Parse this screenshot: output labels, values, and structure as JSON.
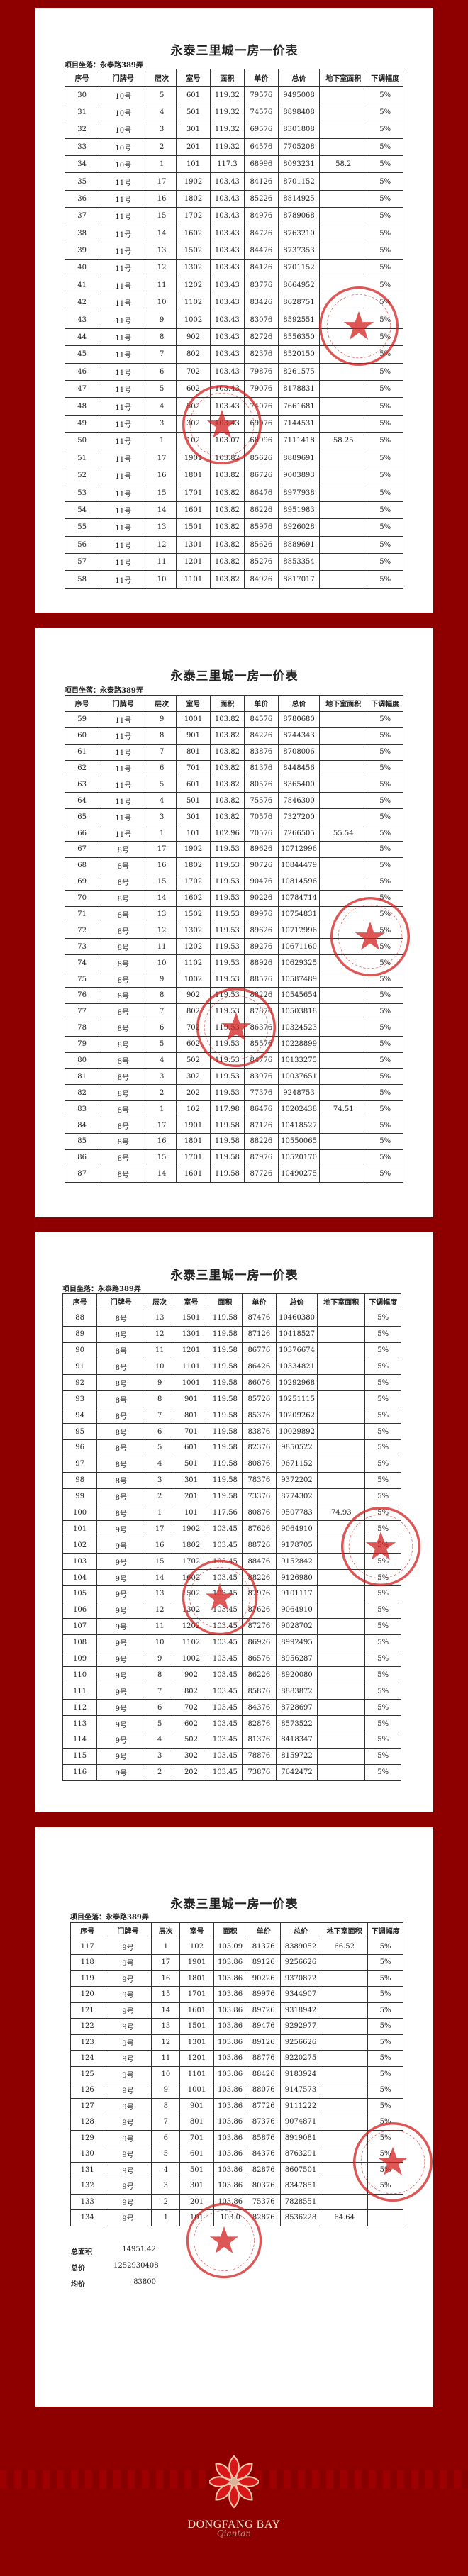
{
  "title": "永泰三里城一房一价表",
  "location": "项目坐落：永泰路389弄",
  "headers": [
    "序号",
    "门牌号",
    "层次",
    "室号",
    "面积",
    "单价",
    "总价",
    "地下室面积",
    "下调幅度"
  ],
  "pages": [
    {
      "rows": [
        [
          "30",
          "10号",
          "5",
          "601",
          "119.32",
          "79576",
          "9495008",
          "",
          "5%"
        ],
        [
          "31",
          "10号",
          "4",
          "501",
          "119.32",
          "74576",
          "8898408",
          "",
          "5%"
        ],
        [
          "32",
          "10号",
          "3",
          "301",
          "119.32",
          "69576",
          "8301808",
          "",
          "5%"
        ],
        [
          "33",
          "10号",
          "2",
          "201",
          "119.32",
          "64576",
          "7705208",
          "",
          "5%"
        ],
        [
          "34",
          "10号",
          "1",
          "101",
          "117.3",
          "68996",
          "8093231",
          "58.2",
          "5%"
        ],
        [
          "35",
          "11号",
          "17",
          "1902",
          "103.43",
          "84126",
          "8701152",
          "",
          "5%"
        ],
        [
          "36",
          "11号",
          "16",
          "1802",
          "103.43",
          "85226",
          "8814925",
          "",
          "5%"
        ],
        [
          "37",
          "11号",
          "15",
          "1702",
          "103.43",
          "84976",
          "8789068",
          "",
          "5%"
        ],
        [
          "38",
          "11号",
          "14",
          "1602",
          "103.43",
          "84726",
          "8763210",
          "",
          "5%"
        ],
        [
          "39",
          "11号",
          "13",
          "1502",
          "103.43",
          "84476",
          "8737353",
          "",
          "5%"
        ],
        [
          "40",
          "11号",
          "12",
          "1302",
          "103.43",
          "84126",
          "8701152",
          "",
          "5%"
        ],
        [
          "41",
          "11号",
          "11",
          "1202",
          "103.43",
          "83776",
          "8664952",
          "",
          "5%"
        ],
        [
          "42",
          "11号",
          "10",
          "1102",
          "103.43",
          "83426",
          "8628751",
          "",
          "5%"
        ],
        [
          "43",
          "11号",
          "9",
          "1002",
          "103.43",
          "83076",
          "8592551",
          "",
          "5%"
        ],
        [
          "44",
          "11号",
          "8",
          "902",
          "103.43",
          "82726",
          "8556350",
          "",
          "5%"
        ],
        [
          "45",
          "11号",
          "7",
          "802",
          "103.43",
          "82376",
          "8520150",
          "",
          "5%"
        ],
        [
          "46",
          "11号",
          "6",
          "702",
          "103.43",
          "79876",
          "8261575",
          "",
          "5%"
        ],
        [
          "47",
          "11号",
          "5",
          "602",
          "103.43",
          "79076",
          "8178831",
          "",
          "5%"
        ],
        [
          "48",
          "11号",
          "4",
          "502",
          "103.43",
          "74076",
          "7661681",
          "",
          "5%"
        ],
        [
          "49",
          "11号",
          "3",
          "302",
          "103.43",
          "69076",
          "7144531",
          "",
          "5%"
        ],
        [
          "50",
          "11号",
          "1",
          "102",
          "103.07",
          "68996",
          "7111418",
          "58.25",
          "5%"
        ],
        [
          "51",
          "11号",
          "17",
          "1901",
          "103.82",
          "85626",
          "8889691",
          "",
          "5%"
        ],
        [
          "52",
          "11号",
          "16",
          "1801",
          "103.82",
          "86726",
          "9003893",
          "",
          "5%"
        ],
        [
          "53",
          "11号",
          "15",
          "1701",
          "103.82",
          "86476",
          "8977938",
          "",
          "5%"
        ],
        [
          "54",
          "11号",
          "14",
          "1601",
          "103.82",
          "86226",
          "8951983",
          "",
          "5%"
        ],
        [
          "55",
          "11号",
          "13",
          "1501",
          "103.82",
          "85976",
          "8926028",
          "",
          "5%"
        ],
        [
          "56",
          "11号",
          "12",
          "1301",
          "103.82",
          "85626",
          "8889691",
          "",
          "5%"
        ],
        [
          "57",
          "11号",
          "11",
          "1201",
          "103.82",
          "85276",
          "8853354",
          "",
          "5%"
        ],
        [
          "58",
          "11号",
          "10",
          "1101",
          "103.82",
          "84926",
          "8817017",
          "",
          "5%"
        ]
      ]
    },
    {
      "rows": [
        [
          "59",
          "11号",
          "9",
          "1001",
          "103.82",
          "84576",
          "8780680",
          "",
          "5%"
        ],
        [
          "60",
          "11号",
          "8",
          "901",
          "103.82",
          "84226",
          "8744343",
          "",
          "5%"
        ],
        [
          "61",
          "11号",
          "7",
          "801",
          "103.82",
          "83876",
          "8708006",
          "",
          "5%"
        ],
        [
          "62",
          "11号",
          "6",
          "701",
          "103.82",
          "81376",
          "8448456",
          "",
          "5%"
        ],
        [
          "63",
          "11号",
          "5",
          "601",
          "103.82",
          "80576",
          "8365400",
          "",
          "5%"
        ],
        [
          "64",
          "11号",
          "4",
          "501",
          "103.82",
          "75576",
          "7846300",
          "",
          "5%"
        ],
        [
          "65",
          "11号",
          "3",
          "301",
          "103.82",
          "70576",
          "7327200",
          "",
          "5%"
        ],
        [
          "66",
          "11号",
          "1",
          "101",
          "102.96",
          "70576",
          "7266505",
          "55.54",
          "5%"
        ],
        [
          "67",
          "8号",
          "17",
          "1902",
          "119.53",
          "89626",
          "10712996",
          "",
          "5%"
        ],
        [
          "68",
          "8号",
          "16",
          "1802",
          "119.53",
          "90726",
          "10844479",
          "",
          "5%"
        ],
        [
          "69",
          "8号",
          "15",
          "1702",
          "119.53",
          "90476",
          "10814596",
          "",
          "5%"
        ],
        [
          "70",
          "8号",
          "14",
          "1602",
          "119.53",
          "90226",
          "10784714",
          "",
          "5%"
        ],
        [
          "71",
          "8号",
          "13",
          "1502",
          "119.53",
          "89976",
          "10754831",
          "",
          "5%"
        ],
        [
          "72",
          "8号",
          "12",
          "1302",
          "119.53",
          "89626",
          "10712996",
          "",
          "5%"
        ],
        [
          "73",
          "8号",
          "11",
          "1202",
          "119.53",
          "89276",
          "10671160",
          "",
          "5%"
        ],
        [
          "74",
          "8号",
          "10",
          "1102",
          "119.53",
          "88926",
          "10629325",
          "",
          "5%"
        ],
        [
          "75",
          "8号",
          "9",
          "1002",
          "119.53",
          "88576",
          "10587489",
          "",
          "5%"
        ],
        [
          "76",
          "8号",
          "8",
          "902",
          "119.53",
          "88226",
          "10545654",
          "",
          "5%"
        ],
        [
          "77",
          "8号",
          "7",
          "802",
          "119.53",
          "87876",
          "10503818",
          "",
          "5%"
        ],
        [
          "78",
          "8号",
          "6",
          "702",
          "119.53",
          "86376",
          "10324523",
          "",
          "5%"
        ],
        [
          "79",
          "8号",
          "5",
          "602",
          "119.53",
          "85576",
          "10228899",
          "",
          "5%"
        ],
        [
          "80",
          "8号",
          "4",
          "502",
          "119.53",
          "84776",
          "10133275",
          "",
          "5%"
        ],
        [
          "81",
          "8号",
          "3",
          "302",
          "119.53",
          "83976",
          "10037651",
          "",
          "5%"
        ],
        [
          "82",
          "8号",
          "2",
          "202",
          "119.53",
          "77376",
          "9248753",
          "",
          "5%"
        ],
        [
          "83",
          "8号",
          "1",
          "102",
          "117.98",
          "86476",
          "10202438",
          "74.51",
          "5%"
        ],
        [
          "84",
          "8号",
          "17",
          "1901",
          "119.58",
          "87126",
          "10418527",
          "",
          "5%"
        ],
        [
          "85",
          "8号",
          "16",
          "1801",
          "119.58",
          "88226",
          "10550065",
          "",
          "5%"
        ],
        [
          "86",
          "8号",
          "15",
          "1701",
          "119.58",
          "87976",
          "10520170",
          "",
          "5%"
        ],
        [
          "87",
          "8号",
          "14",
          "1601",
          "119.58",
          "87726",
          "10490275",
          "",
          "5%"
        ]
      ]
    },
    {
      "rows": [
        [
          "88",
          "8号",
          "13",
          "1501",
          "119.58",
          "87476",
          "10460380",
          "",
          "5%"
        ],
        [
          "89",
          "8号",
          "12",
          "1301",
          "119.58",
          "87126",
          "10418527",
          "",
          "5%"
        ],
        [
          "90",
          "8号",
          "11",
          "1201",
          "119.58",
          "86776",
          "10376674",
          "",
          "5%"
        ],
        [
          "91",
          "8号",
          "10",
          "1101",
          "119.58",
          "86426",
          "10334821",
          "",
          "5%"
        ],
        [
          "92",
          "8号",
          "9",
          "1001",
          "119.58",
          "86076",
          "10292968",
          "",
          "5%"
        ],
        [
          "93",
          "8号",
          "8",
          "901",
          "119.58",
          "85726",
          "10251115",
          "",
          "5%"
        ],
        [
          "94",
          "8号",
          "7",
          "801",
          "119.58",
          "85376",
          "10209262",
          "",
          "5%"
        ],
        [
          "95",
          "8号",
          "6",
          "701",
          "119.58",
          "83876",
          "10029892",
          "",
          "5%"
        ],
        [
          "96",
          "8号",
          "5",
          "601",
          "119.58",
          "82376",
          "9850522",
          "",
          "5%"
        ],
        [
          "97",
          "8号",
          "4",
          "501",
          "119.58",
          "80876",
          "9671152",
          "",
          "5%"
        ],
        [
          "98",
          "8号",
          "3",
          "301",
          "119.58",
          "78376",
          "9372202",
          "",
          "5%"
        ],
        [
          "99",
          "8号",
          "2",
          "201",
          "119.58",
          "73376",
          "8774302",
          "",
          "5%"
        ],
        [
          "100",
          "8号",
          "1",
          "101",
          "117.56",
          "80876",
          "9507783",
          "74.93",
          "5%"
        ],
        [
          "101",
          "9号",
          "17",
          "1902",
          "103.45",
          "87626",
          "9064910",
          "",
          "5%"
        ],
        [
          "102",
          "9号",
          "16",
          "1802",
          "103.45",
          "88726",
          "9178705",
          "",
          "5%"
        ],
        [
          "103",
          "9号",
          "15",
          "1702",
          "103.45",
          "88476",
          "9152842",
          "",
          "5%"
        ],
        [
          "104",
          "9号",
          "14",
          "1602",
          "103.45",
          "88226",
          "9126980",
          "",
          "5%"
        ],
        [
          "105",
          "9号",
          "13",
          "1502",
          "103.45",
          "87976",
          "9101117",
          "",
          "5%"
        ],
        [
          "106",
          "9号",
          "12",
          "1302",
          "103.45",
          "87626",
          "9064910",
          "",
          "5%"
        ],
        [
          "107",
          "9号",
          "11",
          "1202",
          "103.45",
          "87276",
          "9028702",
          "",
          "5%"
        ],
        [
          "108",
          "9号",
          "10",
          "1102",
          "103.45",
          "86926",
          "8992495",
          "",
          "5%"
        ],
        [
          "109",
          "9号",
          "9",
          "1002",
          "103.45",
          "86576",
          "8956287",
          "",
          "5%"
        ],
        [
          "110",
          "9号",
          "8",
          "902",
          "103.45",
          "86226",
          "8920080",
          "",
          "5%"
        ],
        [
          "111",
          "9号",
          "7",
          "802",
          "103.45",
          "85876",
          "8883872",
          "",
          "5%"
        ],
        [
          "112",
          "9号",
          "6",
          "702",
          "103.45",
          "84376",
          "8728697",
          "",
          "5%"
        ],
        [
          "113",
          "9号",
          "5",
          "602",
          "103.45",
          "82876",
          "8573522",
          "",
          "5%"
        ],
        [
          "114",
          "9号",
          "4",
          "502",
          "103.45",
          "81376",
          "8418347",
          "",
          "5%"
        ],
        [
          "115",
          "9号",
          "3",
          "302",
          "103.45",
          "78876",
          "8159722",
          "",
          "5%"
        ],
        [
          "116",
          "9号",
          "2",
          "202",
          "103.45",
          "73876",
          "7642472",
          "",
          "5%"
        ]
      ]
    },
    {
      "rows": [
        [
          "117",
          "9号",
          "1",
          "102",
          "103.09",
          "81376",
          "8389052",
          "66.52",
          "5%"
        ],
        [
          "118",
          "9号",
          "17",
          "1901",
          "103.86",
          "89126",
          "9256626",
          "",
          "5%"
        ],
        [
          "119",
          "9号",
          "16",
          "1801",
          "103.86",
          "90226",
          "9370872",
          "",
          "5%"
        ],
        [
          "120",
          "9号",
          "15",
          "1701",
          "103.86",
          "89976",
          "9344907",
          "",
          "5%"
        ],
        [
          "121",
          "9号",
          "14",
          "1601",
          "103.86",
          "89726",
          "9318942",
          "",
          "5%"
        ],
        [
          "122",
          "9号",
          "13",
          "1501",
          "103.86",
          "89476",
          "9292977",
          "",
          "5%"
        ],
        [
          "123",
          "9号",
          "12",
          "1301",
          "103.86",
          "89126",
          "9256626",
          "",
          "5%"
        ],
        [
          "124",
          "9号",
          "11",
          "1201",
          "103.86",
          "88776",
          "9220275",
          "",
          "5%"
        ],
        [
          "125",
          "9号",
          "10",
          "1101",
          "103.86",
          "88426",
          "9183924",
          "",
          "5%"
        ],
        [
          "126",
          "9号",
          "9",
          "1001",
          "103.86",
          "88076",
          "9147573",
          "",
          "5%"
        ],
        [
          "127",
          "9号",
          "8",
          "901",
          "103.86",
          "87726",
          "9111222",
          "",
          "5%"
        ],
        [
          "128",
          "9号",
          "7",
          "801",
          "103.86",
          "87376",
          "9074871",
          "",
          "5%"
        ],
        [
          "129",
          "9号",
          "6",
          "701",
          "103.86",
          "85876",
          "8919081",
          "",
          "5%"
        ],
        [
          "130",
          "9号",
          "5",
          "601",
          "103.86",
          "84376",
          "8763291",
          "",
          "5%"
        ],
        [
          "131",
          "9号",
          "4",
          "501",
          "103.86",
          "82876",
          "8607501",
          "",
          "5%"
        ],
        [
          "132",
          "9号",
          "3",
          "301",
          "103.86",
          "80376",
          "8347851",
          "",
          "5%"
        ],
        [
          "133",
          "9号",
          "2",
          "201",
          "103.86",
          "75376",
          "7828551",
          "",
          ""
        ],
        [
          "134",
          "9号",
          "1",
          "101",
          "103.0",
          "82876",
          "8536228",
          "64.64",
          ""
        ]
      ]
    }
  ],
  "totals": {
    "area_label": "总面积",
    "area": "14951.42",
    "price_label": "总价",
    "price": "1252930408",
    "avg_label": "均价",
    "avg": "83800"
  },
  "brand": {
    "name": "DONGFANG BAY",
    "script": "Qiantan",
    "icon": "flower-logo-icon"
  },
  "colors": {
    "background": "#8e0000",
    "stamp": "#d42020"
  }
}
